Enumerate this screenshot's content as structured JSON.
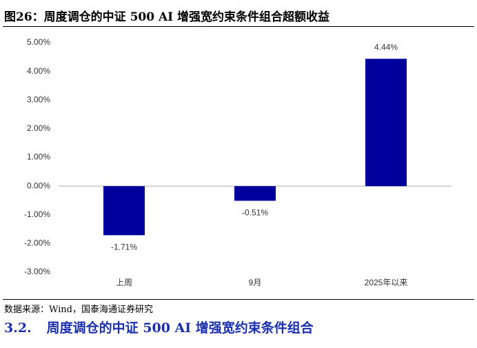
{
  "figure_title": "图26：周度调仓的中证 500 AI 增强宽约束条件组合超额收益",
  "chart_data": {
    "type": "bar",
    "categories": [
      "上周",
      "9月",
      "2025年以来"
    ],
    "values": [
      -1.71,
      -0.51,
      4.44
    ],
    "value_labels": [
      "-1.71%",
      "-0.51%",
      "4.44%"
    ],
    "color": "#00009c",
    "ylim": [
      -3,
      5
    ],
    "yticks": [
      {
        "value": -3,
        "label": "-3.00%"
      },
      {
        "value": -2,
        "label": "-2.00%"
      },
      {
        "value": -1,
        "label": "-1.00%"
      },
      {
        "value": 0,
        "label": "0.00%"
      },
      {
        "value": 1,
        "label": "1.00%"
      },
      {
        "value": 2,
        "label": "2.00%"
      },
      {
        "value": 3,
        "label": "3.00%"
      },
      {
        "value": 4,
        "label": "4.00%"
      },
      {
        "value": 5,
        "label": "5.00%"
      }
    ],
    "grid": false
  },
  "source": "数据来源：Wind，国泰海通证券研究",
  "section": {
    "number": "3.2.",
    "title": "周度调仓的中证 500 AI 增强宽约束条件组合"
  }
}
